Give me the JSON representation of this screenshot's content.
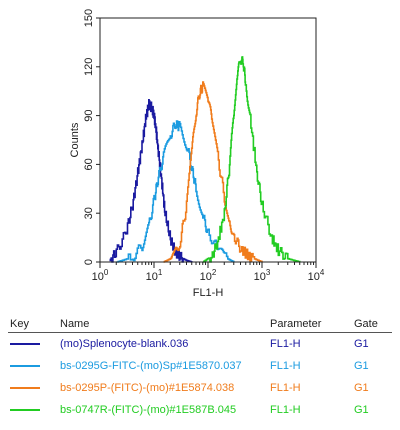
{
  "chart_data": {
    "type": "line",
    "xlabel": "FL1-H",
    "ylabel": "Counts",
    "xscale": "log",
    "xlim": [
      1,
      10000
    ],
    "ylim": [
      0,
      150
    ],
    "x_ticks": [
      {
        "base": "10",
        "exp": "0"
      },
      {
        "base": "10",
        "exp": "1"
      },
      {
        "base": "10",
        "exp": "2"
      },
      {
        "base": "10",
        "exp": "3"
      },
      {
        "base": "10",
        "exp": "4"
      }
    ],
    "y_ticks": [
      "0",
      "30",
      "60",
      "90",
      "120",
      "150"
    ],
    "series": [
      {
        "name": "(mo)Splenocyte-blank.036",
        "color": "#1a1aa0",
        "x": [
          1.5,
          2,
          3,
          4,
          5,
          6,
          7,
          8,
          9,
          10,
          11,
          12,
          14,
          16,
          20,
          25,
          30,
          40,
          50
        ],
        "y": [
          1,
          6,
          18,
          35,
          55,
          72,
          88,
          97,
          95,
          90,
          80,
          68,
          48,
          30,
          14,
          6,
          3,
          1,
          0
        ]
      },
      {
        "name": "bs-0295G-FITC-(mo)Sp#1E5870.037",
        "color": "#1b9be0",
        "x": [
          2,
          4,
          6,
          8,
          10,
          12,
          15,
          20,
          25,
          30,
          40,
          50,
          60,
          80,
          100,
          150,
          200,
          300
        ],
        "y": [
          0,
          3,
          10,
          22,
          38,
          52,
          65,
          78,
          85,
          83,
          72,
          58,
          45,
          28,
          18,
          8,
          3,
          0
        ]
      },
      {
        "name": "bs-0295P-(FITC)-(mo)#1E5874.038",
        "color": "#f07c1c",
        "x": [
          15,
          20,
          25,
          30,
          40,
          50,
          60,
          70,
          80,
          100,
          120,
          150,
          200,
          250,
          300,
          400,
          600,
          1000
        ],
        "y": [
          0,
          2,
          6,
          12,
          35,
          68,
          92,
          104,
          108,
          100,
          85,
          65,
          40,
          25,
          16,
          8,
          3,
          0
        ]
      },
      {
        "name": "bs-0747R-(FITC)-(mo)#1E587B.045",
        "color": "#22cc22",
        "x": [
          80,
          120,
          150,
          200,
          250,
          300,
          350,
          400,
          450,
          500,
          600,
          800,
          1000,
          1500,
          2000,
          3000,
          5000
        ],
        "y": [
          0,
          4,
          12,
          30,
          60,
          92,
          115,
          125,
          122,
          110,
          88,
          55,
          35,
          15,
          7,
          2,
          0
        ]
      }
    ]
  },
  "legend": {
    "headers": {
      "key": "Key",
      "name": "Name",
      "parameter": "Parameter",
      "gate": "Gate"
    },
    "rows": [
      {
        "name": "(mo)Splenocyte-blank.036",
        "parameter": "FL1-H",
        "gate": "G1",
        "color": "#1a1aa0"
      },
      {
        "name": "bs-0295G-FITC-(mo)Sp#1E5870.037",
        "parameter": "FL1-H",
        "gate": "G1",
        "color": "#1b9be0"
      },
      {
        "name": "bs-0295P-(FITC)-(mo)#1E5874.038",
        "parameter": "FL1-H",
        "gate": "G1",
        "color": "#f07c1c"
      },
      {
        "name": "bs-0747R-(FITC)-(mo)#1E587B.045",
        "parameter": "FL1-H",
        "gate": "G1",
        "color": "#22cc22"
      }
    ]
  }
}
